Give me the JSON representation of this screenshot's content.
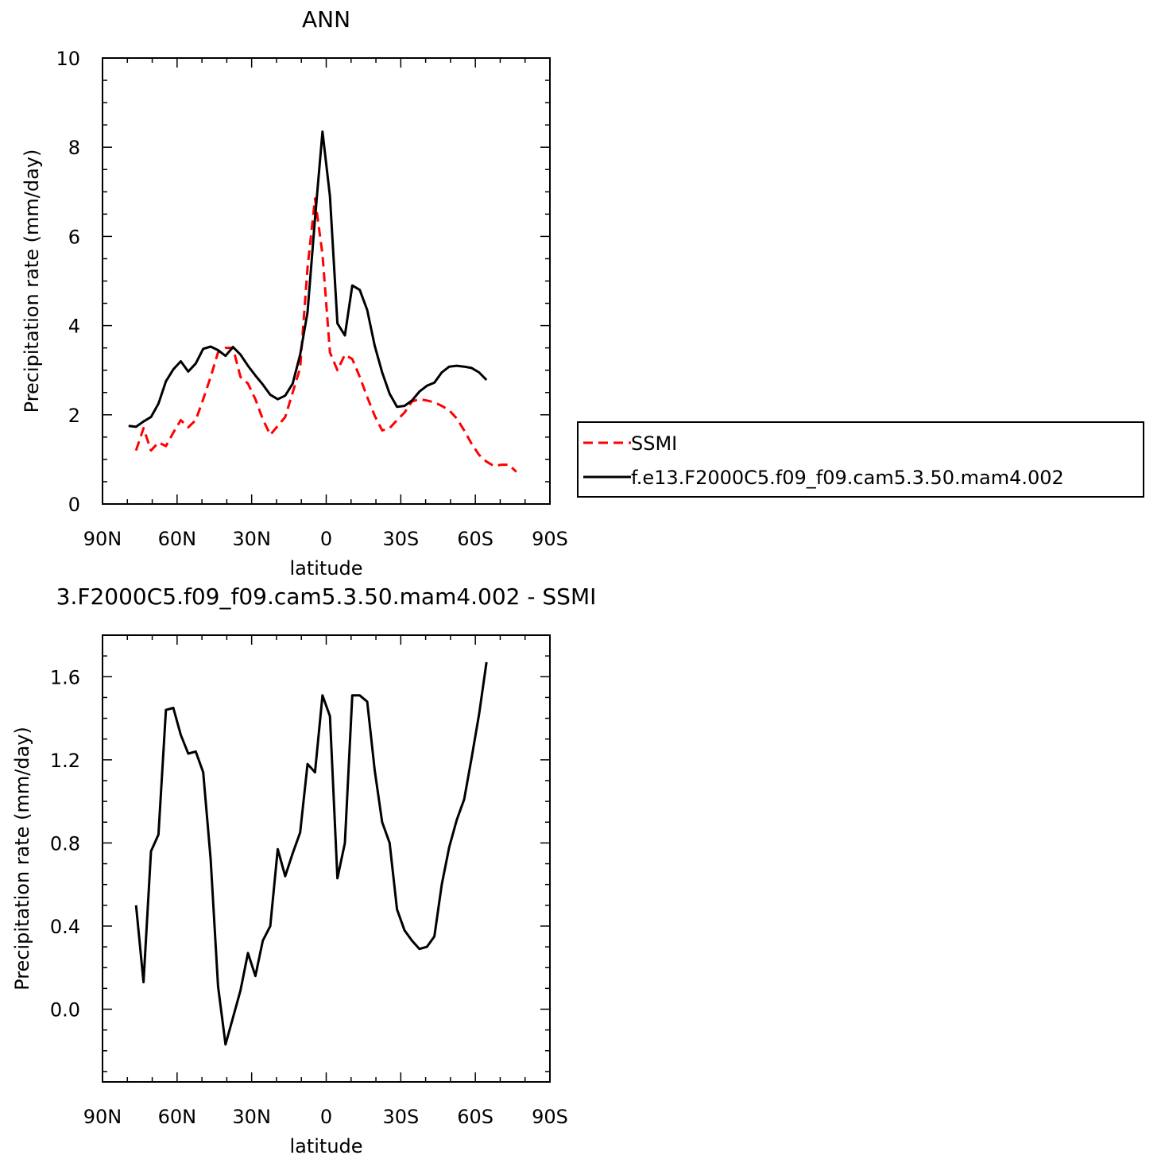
{
  "chart_data": [
    {
      "type": "line",
      "title": "ANN",
      "xlabel": "latitude",
      "ylabel": "Precipitation rate (mm/day)",
      "xlim": [
        -90,
        90
      ],
      "ylim": [
        0,
        10
      ],
      "x_ticks": [
        -90,
        -60,
        -30,
        0,
        30,
        60,
        90
      ],
      "x_tick_labels": [
        "90N",
        "60N",
        "30N",
        "0",
        "30S",
        "60S",
        "90S"
      ],
      "y_ticks": [
        0,
        2,
        4,
        6,
        8,
        10
      ],
      "y_tick_labels": [
        "0",
        "2",
        "4",
        "6",
        "8",
        "10"
      ],
      "legend": "right",
      "grid": false,
      "series": [
        {
          "name": "SSMI",
          "color": "#ff0000",
          "dash": "dashed",
          "x": [
            -76.5,
            -73.5,
            -70.5,
            -67.5,
            -64.5,
            -61.5,
            -58.5,
            -55.5,
            -52.5,
            -49.5,
            -46.5,
            -43.5,
            -40.5,
            -37.5,
            -34.5,
            -31.5,
            -28.5,
            -25.5,
            -22.5,
            -19.5,
            -16.5,
            -13.5,
            -10.5,
            -7.5,
            -4.5,
            -1.5,
            1.5,
            4.5,
            7.5,
            10.5,
            13.5,
            16.5,
            19.5,
            22.5,
            25.5,
            28.5,
            31.5,
            34.5,
            37.5,
            40.5,
            43.5,
            46.5,
            49.5,
            52.5,
            55.5,
            58.5,
            61.5,
            64.5,
            67.5,
            70.5,
            73.5,
            76.5
          ],
          "values": [
            1.2,
            1.7,
            1.2,
            1.38,
            1.3,
            1.6,
            1.88,
            1.72,
            1.88,
            2.35,
            2.85,
            3.4,
            3.5,
            3.5,
            2.85,
            2.7,
            2.35,
            1.9,
            1.55,
            1.75,
            1.95,
            2.5,
            3.05,
            5.3,
            6.85,
            5.6,
            3.4,
            3.0,
            3.35,
            3.25,
            2.85,
            2.4,
            1.98,
            1.65,
            1.7,
            1.88,
            2.05,
            2.3,
            2.35,
            2.32,
            2.28,
            2.2,
            2.1,
            1.92,
            1.65,
            1.35,
            1.1,
            0.95,
            0.85,
            0.88,
            0.88,
            0.72
          ]
        },
        {
          "name": "f.e13.F2000C5.f09_f09.cam5.3.50.mam4.002",
          "color": "#000000",
          "dash": "solid",
          "x": [
            -79.5,
            -76.5,
            -73.5,
            -70.5,
            -67.5,
            -64.5,
            -61.5,
            -58.5,
            -55.5,
            -52.5,
            -49.5,
            -46.5,
            -43.5,
            -40.5,
            -37.5,
            -34.5,
            -31.5,
            -28.5,
            -25.5,
            -22.5,
            -19.5,
            -16.5,
            -13.5,
            -10.5,
            -7.5,
            -4.5,
            -1.5,
            1.5,
            4.5,
            7.5,
            10.5,
            13.5,
            16.5,
            19.5,
            22.5,
            25.5,
            28.5,
            31.5,
            34.5,
            37.5,
            40.5,
            43.5,
            46.5,
            49.5,
            52.5,
            55.5,
            58.5,
            61.5,
            64.5
          ],
          "values": [
            1.75,
            1.73,
            1.85,
            1.95,
            2.25,
            2.75,
            3.02,
            3.2,
            2.97,
            3.15,
            3.48,
            3.53,
            3.45,
            3.32,
            3.52,
            3.35,
            3.1,
            2.88,
            2.68,
            2.45,
            2.35,
            2.43,
            2.7,
            3.35,
            4.3,
            6.4,
            8.35,
            6.9,
            4.05,
            3.78,
            4.9,
            4.8,
            4.35,
            3.55,
            2.95,
            2.47,
            2.18,
            2.2,
            2.32,
            2.52,
            2.65,
            2.72,
            2.95,
            3.08,
            3.1,
            3.08,
            3.05,
            2.95,
            2.78
          ]
        }
      ]
    },
    {
      "type": "line",
      "title": "3.F2000C5.f09_f09.cam5.3.50.mam4.002 - SSMI",
      "xlabel": "latitude",
      "ylabel": "Precipitation rate (mm/day)",
      "xlim": [
        -90,
        90
      ],
      "ylim": [
        -0.35,
        1.8
      ],
      "x_ticks": [
        -90,
        -60,
        -30,
        0,
        30,
        60,
        90
      ],
      "x_tick_labels": [
        "90N",
        "60N",
        "30N",
        "0",
        "30S",
        "60S",
        "90S"
      ],
      "y_ticks": [
        0.0,
        0.4,
        0.8,
        1.2,
        1.6
      ],
      "y_tick_labels": [
        "0.0",
        "0.4",
        "0.8",
        "1.2",
        "1.6"
      ],
      "grid": false,
      "series": [
        {
          "color": "#000000",
          "dash": "solid",
          "x": [
            -76.5,
            -73.5,
            -70.5,
            -67.5,
            -64.5,
            -61.5,
            -58.5,
            -55.5,
            -52.5,
            -49.5,
            -46.5,
            -43.5,
            -40.5,
            -37.5,
            -34.5,
            -31.5,
            -28.5,
            -25.5,
            -22.5,
            -19.5,
            -16.5,
            -13.5,
            -10.5,
            -7.5,
            -4.5,
            -1.5,
            1.5,
            4.5,
            7.5,
            10.5,
            13.5,
            16.5,
            19.5,
            22.5,
            25.5,
            28.5,
            31.5,
            34.5,
            37.5,
            40.5,
            43.5,
            46.5,
            49.5,
            52.5,
            55.5,
            58.5,
            61.5,
            64.5
          ],
          "values": [
            0.5,
            0.13,
            0.76,
            0.84,
            1.44,
            1.45,
            1.32,
            1.23,
            1.24,
            1.14,
            0.72,
            0.11,
            -0.17,
            -0.04,
            0.09,
            0.27,
            0.16,
            0.33,
            0.4,
            0.77,
            0.64,
            0.75,
            0.85,
            1.18,
            1.14,
            1.51,
            1.41,
            0.63,
            0.8,
            1.51,
            1.51,
            1.48,
            1.15,
            0.9,
            0.8,
            0.48,
            0.38,
            0.33,
            0.29,
            0.3,
            0.35,
            0.6,
            0.78,
            0.91,
            1.01,
            1.21,
            1.42,
            1.67
          ]
        }
      ]
    }
  ]
}
